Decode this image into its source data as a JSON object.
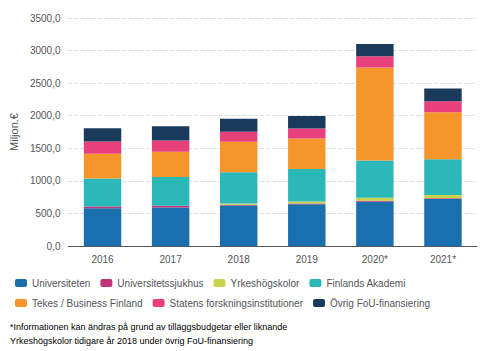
{
  "chart_data": {
    "type": "bar",
    "stacked": true,
    "grid": true,
    "legend": "bottom",
    "categories": [
      "2016",
      "2017",
      "2018",
      "2019",
      "2020*",
      "2021*"
    ],
    "ylabel": "Miljon.€",
    "ylim": [
      0,
      3500
    ],
    "yticks": [
      {
        "value": 0,
        "label": "0,0"
      },
      {
        "value": 500,
        "label": "500,0"
      },
      {
        "value": 1000,
        "label": "1000,0"
      },
      {
        "value": 1500,
        "label": "1500,0"
      },
      {
        "value": 2000,
        "label": "2000,0"
      },
      {
        "value": 2500,
        "label": "2500,0"
      },
      {
        "value": 3000,
        "label": "3000,0"
      },
      {
        "value": 3500,
        "label": "3500,0"
      }
    ],
    "series": [
      {
        "name": "Universiteten",
        "color": "#1a6faf",
        "values": [
          580,
          590,
          620,
          640,
          680,
          720
        ]
      },
      {
        "name": "Universitetssjukhus",
        "color": "#c0357a",
        "values": [
          28,
          28,
          14,
          14,
          14,
          14
        ]
      },
      {
        "name": "Yrkeshögskolor",
        "color": "#c8d44e",
        "values": [
          0,
          0,
          18,
          28,
          48,
          48
        ]
      },
      {
        "name": "Finlands Akademi",
        "color": "#2ab8b8",
        "values": [
          430,
          440,
          480,
          500,
          570,
          550
        ]
      },
      {
        "name": "Tekes / Business Finland",
        "color": "#f5952a",
        "values": [
          380,
          390,
          470,
          470,
          1430,
          720
        ]
      },
      {
        "name": "Statens forskningsinstitutioner",
        "color": "#e8407a",
        "values": [
          185,
          170,
          150,
          150,
          170,
          170
        ]
      },
      {
        "name": "Övrig FoU-finansiering",
        "color": "#1a3a5c",
        "values": [
          205,
          220,
          200,
          195,
          190,
          195
        ]
      }
    ],
    "annotations": [
      "*Informationen kan ändras på grund av tilläggsbudgetar eller liknande",
      "Yrkeshögskolor tidigare år 2018 under övrig FoU-finansiering"
    ]
  }
}
